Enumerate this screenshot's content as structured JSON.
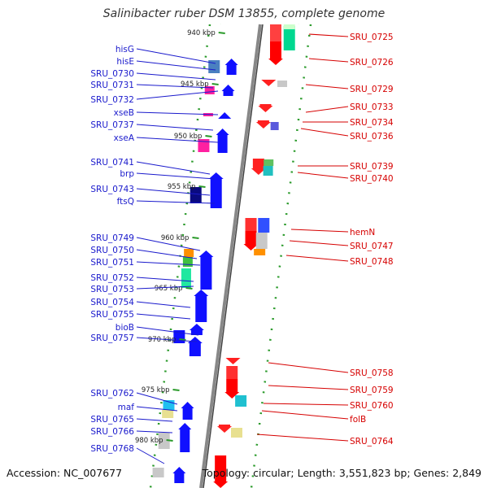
{
  "title": "Salinibacter ruber DSM 13855, complete genome",
  "footer": {
    "accession": "Accession: NC_007677",
    "topology": "Topology: circular; Length: 3,551,823 bp; Genes: 2,849"
  },
  "colors": {
    "left_labels": "#1a1acc",
    "right_labels": "#d60000",
    "backbone": "#888888",
    "dots": "#2a9a2a"
  },
  "kbp_ticks": [
    "940 kbp",
    "945 kbp",
    "950 kbp",
    "955 kbp",
    "960 kbp",
    "965 kbp",
    "970 kbp",
    "975 kbp",
    "980 kbp"
  ],
  "left_labels": [
    "hisG",
    "hisE",
    "SRU_0730",
    "SRU_0731",
    "SRU_0732",
    "xseB",
    "SRU_0737",
    "xseA",
    "SRU_0741",
    "brp",
    "SRU_0743",
    "ftsQ",
    "SRU_0749",
    "SRU_0750",
    "SRU_0751",
    "SRU_0752",
    "SRU_0753",
    "SRU_0754",
    "SRU_0755",
    "bioB",
    "SRU_0757",
    "SRU_0762",
    "maf",
    "SRU_0765",
    "SRU_0766",
    "SRU_0768"
  ],
  "right_labels": [
    "SRU_0725",
    "SRU_0726",
    "SRU_0729",
    "SRU_0733",
    "SRU_0734",
    "SRU_0736",
    "SRU_0739",
    "SRU_0740",
    "hemN",
    "SRU_0747",
    "SRU_0748",
    "SRU_0758",
    "SRU_0759",
    "SRU_0760",
    "folB",
    "SRU_0764"
  ]
}
